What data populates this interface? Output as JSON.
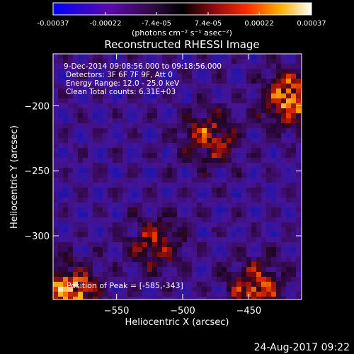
{
  "chart_data": {
    "type": "heatmap",
    "title": "Reconstructed RHESSI Image",
    "xlabel": "Heliocentric X (arcsec)",
    "ylabel": "Heliocentric Y (arcsec)",
    "colorbar": {
      "min": -0.00037,
      "max": 0.00037,
      "ticks": [
        -0.00037,
        -0.00022,
        -7.4e-05,
        7.4e-05,
        0.00022,
        0.00037
      ],
      "tick_labels": [
        "-0.00037",
        "-0.00022",
        "-7.4e-05",
        "7.4e-05",
        "0.00022",
        "0.00037"
      ],
      "units_label": "(photons cm⁻² s⁻¹ asec⁻²)",
      "colors": [
        "#0000ff",
        "#5a0aaa",
        "#3a0a4a",
        "#000000",
        "#8a0a10",
        "#ff2a00",
        "#ffb000",
        "#ffffff"
      ]
    },
    "x_ticks": [
      -550,
      -500,
      -450
    ],
    "y_ticks": [
      -200,
      -250,
      -300
    ],
    "xlim": [
      -598,
      -410
    ],
    "ylim": [
      -349,
      -160
    ],
    "annotations": [
      "9-Dec-2014 09:08:56.000 to 09:18:56.000",
      "Detectors: 3F 6F 7F 9F, Att 0",
      "Energy Range: 12.0 - 25.0 keV",
      "Clean     Total counts: 6.31E+03"
    ],
    "peak": {
      "label": "Position of Peak = [-585,-343]",
      "x": -585,
      "y": -343
    },
    "bright_regions": [
      {
        "x": -480,
        "y": -225,
        "level": 0.65
      },
      {
        "x": -418,
        "y": -195,
        "level": 0.9
      },
      {
        "x": -520,
        "y": -305,
        "level": 0.6
      },
      {
        "x": -445,
        "y": -340,
        "level": 0.75
      },
      {
        "x": -585,
        "y": -343,
        "level": 1.0
      }
    ]
  },
  "footer": {
    "date": "24-Aug-2017 09:22"
  }
}
